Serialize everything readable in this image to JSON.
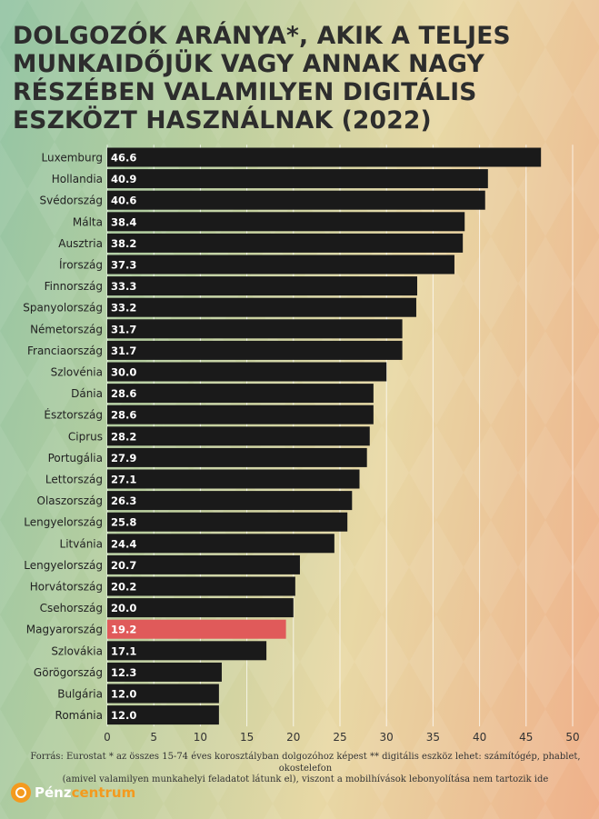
{
  "title": "DOLGOZÓK ARÁNYA*, AKIK A TELJES MUNKAIDŐJÜK VAGY ANNAK NAGY RÉSZÉBEN VALAMILYEN DIGITÁLIS ESZKÖZT HASZNÁLNAK (2022)",
  "source_line1": "Forrás: Eurostat * az összes 15-74 éves korosztályban dolgozóhoz képest ** digitális eszköz lehet: számítógép, phablet, okostelefon",
  "source_line2": "(amivel valamilyen munkahelyi feladatot látunk el), viszont a mobilhívások lebonyolítása nem tartozik ide",
  "brand": {
    "part1": "Pénz",
    "part2": "centrum"
  },
  "colors": {
    "bar": "#1a1a1a",
    "highlight": "#e05a5a",
    "grid": "#ffffff"
  },
  "chart_data": {
    "type": "bar",
    "orientation": "horizontal",
    "categories": [
      "Luxemburg",
      "Hollandia",
      "Svédország",
      "Málta",
      "Ausztria",
      "Írország",
      "Finnország",
      "Spanyolország",
      "Németország",
      "Franciaország",
      "Szlovénia",
      "Dánia",
      "Észtország",
      "Ciprus",
      "Portugália",
      "Lettország",
      "Olaszország",
      "Lengyelország",
      "Litvánia",
      "Lengyelország",
      "Horvátország",
      "Csehország",
      "Magyarország",
      "Szlovákia",
      "Görögország",
      "Bulgária",
      "Románia"
    ],
    "values": [
      46.6,
      40.9,
      40.6,
      38.4,
      38.2,
      37.3,
      33.3,
      33.2,
      31.7,
      31.7,
      30.0,
      28.6,
      28.6,
      28.2,
      27.9,
      27.1,
      26.3,
      25.8,
      24.4,
      20.7,
      20.2,
      20.0,
      19.2,
      17.1,
      12.3,
      12.0,
      12.0
    ],
    "value_labels": [
      "46.6",
      "40.9",
      "40.6",
      "38.4",
      "38.2",
      "37.3",
      "33.3",
      "33.2",
      "31.7",
      "31.7",
      "30.0",
      "28.6",
      "28.6",
      "28.2",
      "27.9",
      "27.1",
      "26.3",
      "25.8",
      "24.4",
      "20.7",
      "20.2",
      "20.0",
      "19.2",
      "17.1",
      "12.3",
      "12.0",
      "12.0"
    ],
    "highlight": "Magyarország",
    "xlim": [
      0,
      50
    ],
    "xticks": [
      0,
      5,
      10,
      15,
      20,
      25,
      30,
      35,
      40,
      45,
      50
    ],
    "xlabel": "",
    "ylabel": "",
    "grid": true,
    "legend": "none"
  }
}
